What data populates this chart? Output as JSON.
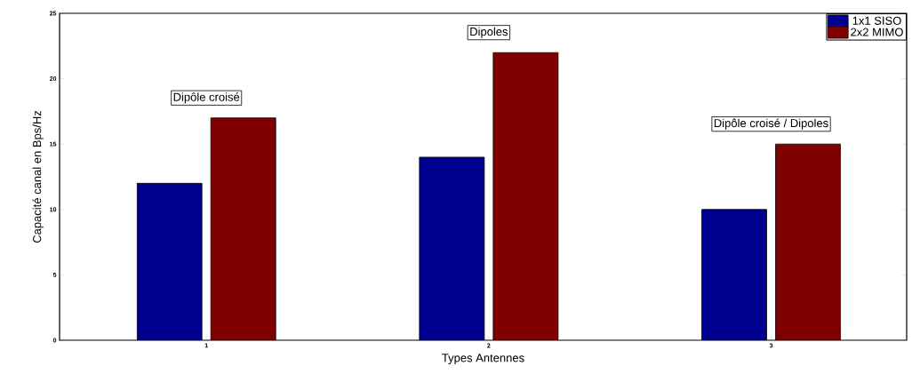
{
  "chart_data": {
    "type": "bar",
    "xlabel": "Types Antennes",
    "ylabel": "Capacité canal en Bps/Hz",
    "categories": [
      "1",
      "2",
      "3"
    ],
    "series": [
      {
        "name": "1x1 SISO",
        "color": "#000090",
        "values": [
          12,
          14,
          10
        ]
      },
      {
        "name": "2x2 MIMO",
        "color": "#800000",
        "values": [
          17,
          22,
          15
        ]
      }
    ],
    "ylim": [
      0,
      25
    ],
    "yticks": [
      0,
      5,
      10,
      15,
      20,
      25
    ],
    "legend": "top right",
    "grid": false,
    "annotations": [
      "Dipôle croisé",
      "Dipoles",
      "Dipôle croisé / Dipoles"
    ]
  }
}
